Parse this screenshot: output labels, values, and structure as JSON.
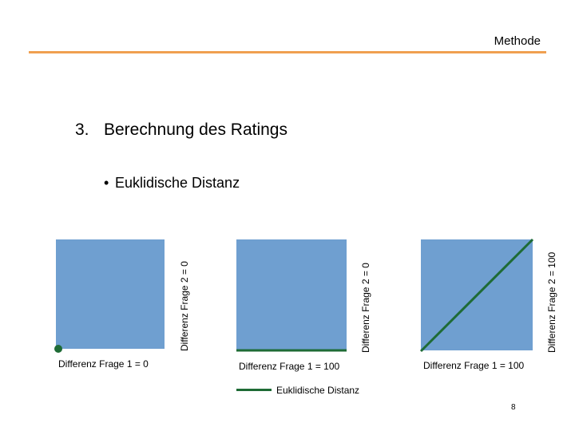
{
  "header": {
    "title": "Methode"
  },
  "section": {
    "number": "3.",
    "title": "Berechnung des Ratings"
  },
  "bullet": {
    "marker": "•",
    "text": "Euklidische Distanz"
  },
  "panels": [
    {
      "xlabel": "Differenz Frage 1 = 0",
      "ylabel": "Differenz Frage 2 = 0"
    },
    {
      "xlabel": "Differenz Frage 1 = 100",
      "ylabel": "Differenz Frage 2 = 0"
    },
    {
      "xlabel": "Differenz Frage 1 = 100",
      "ylabel": "Differenz Frage 2 = 100"
    }
  ],
  "legend": {
    "label": "Euklidische Distanz"
  },
  "colors": {
    "accent_rule": "#f0a050",
    "panel_fill": "#6f9fd0",
    "distance_line": "#1e6b35"
  },
  "page_number": "8"
}
